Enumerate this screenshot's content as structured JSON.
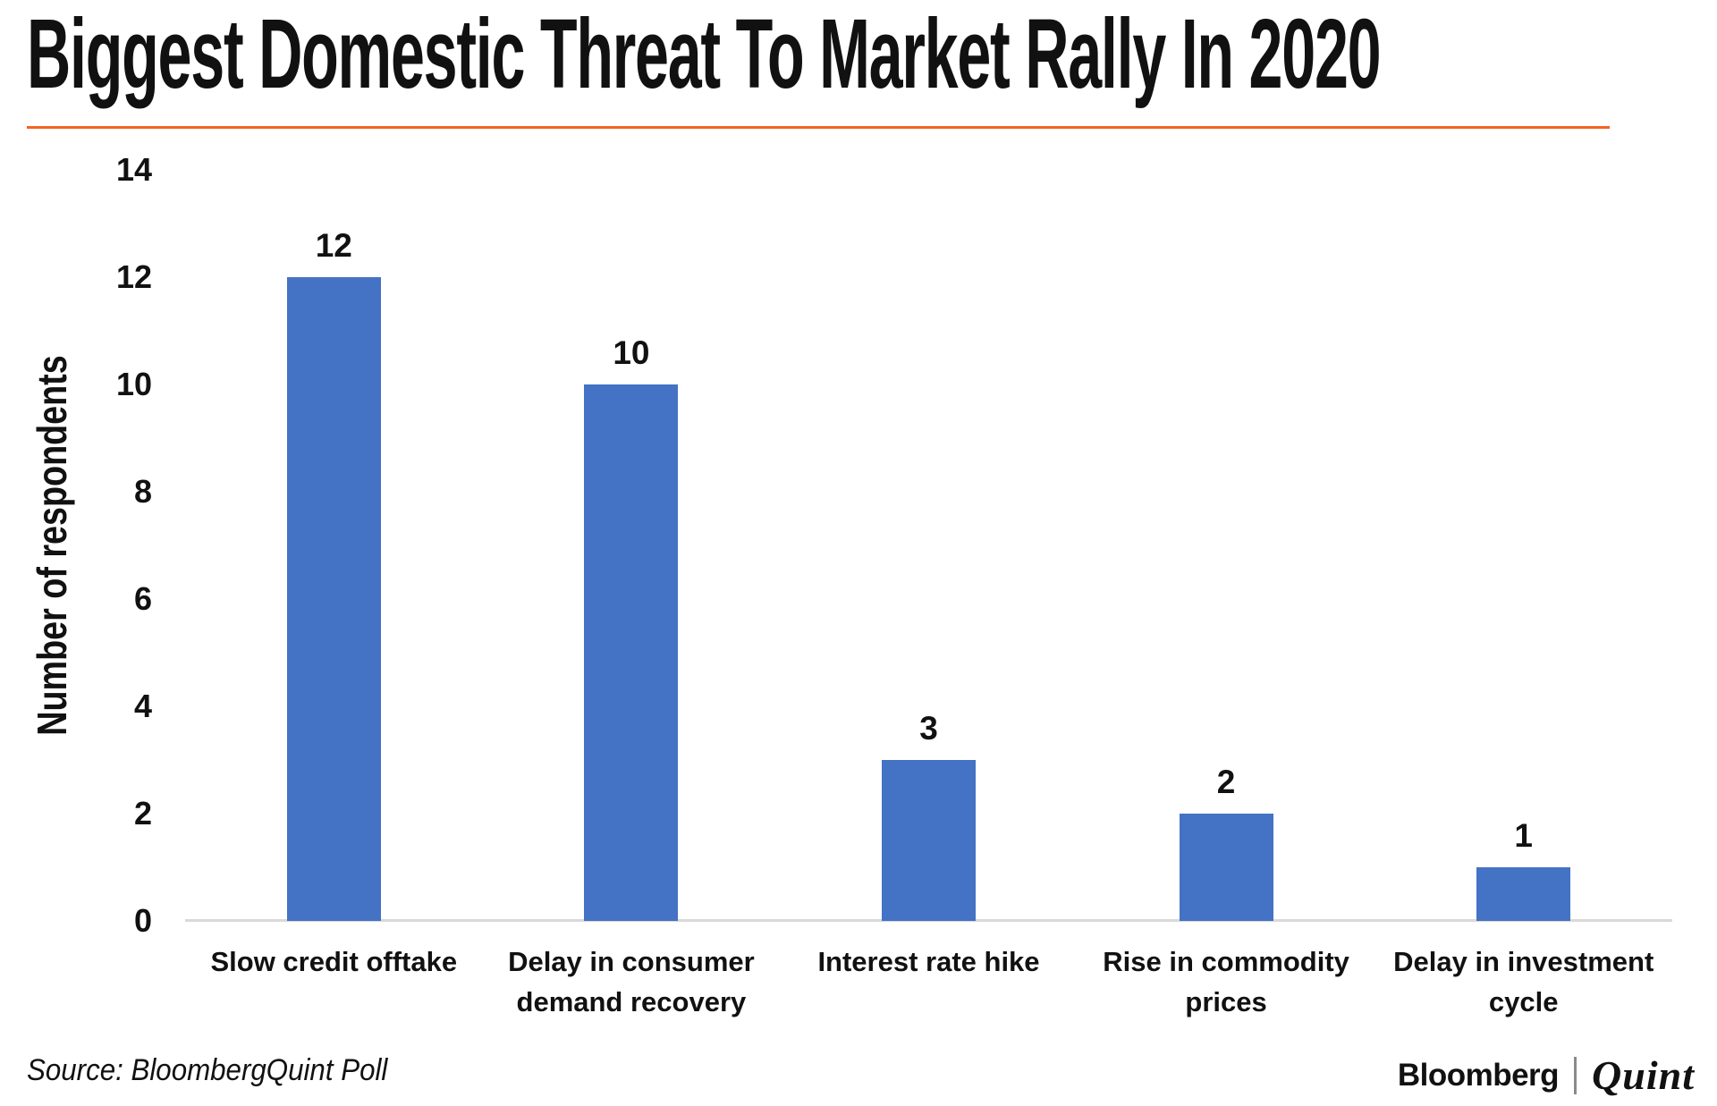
{
  "chart_data": {
    "type": "bar",
    "title": "Biggest Domestic Threat To Market Rally In 2020",
    "categories": [
      "Slow credit offtake",
      "Delay in consumer demand recovery",
      "Interest rate hike",
      "Rise in commodity prices",
      "Delay in investment cycle"
    ],
    "values": [
      12,
      10,
      3,
      2,
      1
    ],
    "xlabel": "",
    "ylabel": "Number of respondents",
    "ylim": [
      0,
      14
    ],
    "yticks": [
      0,
      2,
      4,
      6,
      8,
      10,
      12,
      14
    ],
    "show_data_labels": true,
    "grid": false,
    "legend": false
  },
  "footer": {
    "source": "Source: BloombergQuint Poll",
    "brand": {
      "bloomberg": "Bloomberg",
      "divider": "|",
      "quint": "Quint"
    }
  },
  "colors": {
    "bar": "#4472C4",
    "accent_rule": "#F26522",
    "axis_line": "#D9D9D9",
    "logo_divider": "#8A8A8A",
    "text": "#111111"
  }
}
